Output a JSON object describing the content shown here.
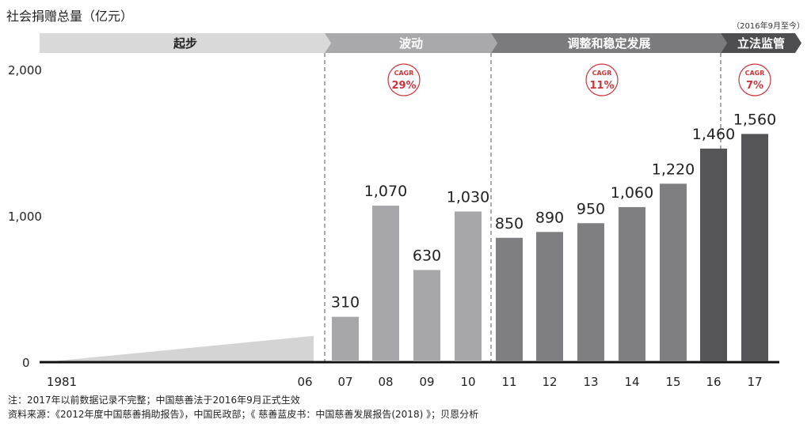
{
  "chart_data": {
    "type": "bar",
    "title": "社会捐赠总量（亿元）",
    "subtitle_right": "（2016年9月至今）",
    "ylabel": "亿元",
    "ylim": [
      0,
      2000
    ],
    "yticks": [
      "0",
      "1,000",
      "2,000"
    ],
    "ytick_values": [
      0,
      1000,
      2000
    ],
    "start_label": "1981",
    "categories": [
      "06",
      "07",
      "08",
      "09",
      "10",
      "11",
      "12",
      "13",
      "14",
      "15",
      "16",
      "17"
    ],
    "values": [
      null,
      310,
      1070,
      630,
      1030,
      850,
      890,
      950,
      1060,
      1220,
      1460,
      1560
    ],
    "value_labels": [
      "",
      "310",
      "1,070",
      "630",
      "1,030",
      "850",
      "890",
      "950",
      "1,060",
      "1,220",
      "1,460",
      "1,560"
    ],
    "early_period_ramp": {
      "from": "1981",
      "to": "06",
      "approx_end_value": 180
    },
    "phases": [
      {
        "label": "起步",
        "color": "#d9d9d9",
        "text_color": "#222222"
      },
      {
        "label": "波动",
        "color": "#a9a9ab",
        "text_color": "#ffffff",
        "cagr_label": "CAGR",
        "cagr": "29%"
      },
      {
        "label": "调整和稳定发展",
        "color": "#7b7b7d",
        "text_color": "#ffffff",
        "cagr_label": "CAGR",
        "cagr": "11%"
      },
      {
        "label": "立法监管",
        "color": "#4e4e50",
        "text_color": "#ffffff",
        "cagr_label": "CAGR",
        "cagr": "7%"
      }
    ],
    "bar_colors": {
      "phase2": "#a7a7a9",
      "phase3": "#7f7f81",
      "phase4": "#555557",
      "ramp": "#d4d4d4"
    },
    "accent": "#d0343a"
  },
  "notes": [
    "注：2017年以前数据记录不完整；中国慈善法于2016年9月正式生效",
    "资料来源：《2012年度中国慈善捐助报告》，中国民政部；《 慈善蓝皮书：中国慈善发展报告(2018) 》；贝恩分析"
  ]
}
